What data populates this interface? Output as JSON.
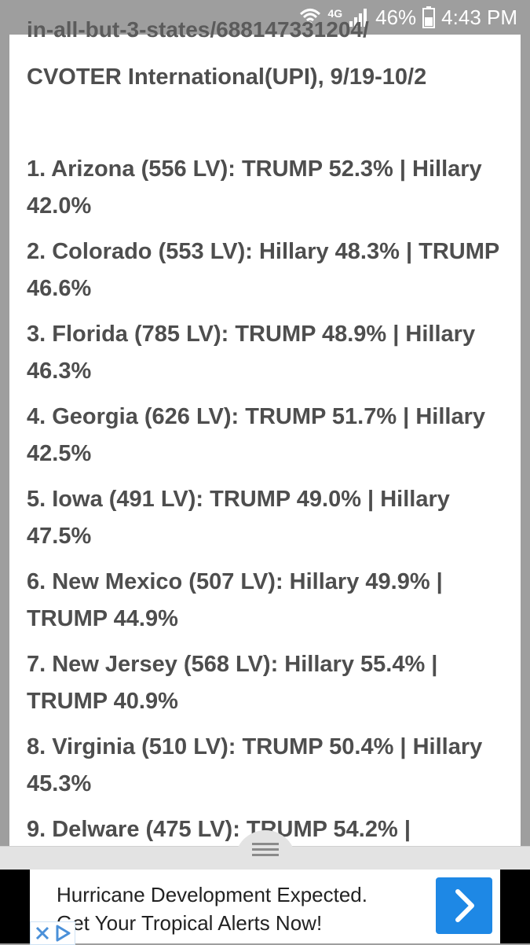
{
  "status_bar": {
    "network": "4G",
    "battery_percent": "46%",
    "time": "4:43 PM"
  },
  "article": {
    "url_fragment": "in-all-but-3-states/688147331204/",
    "source_line": "CVOTER International(UPI), 9/19-10/2",
    "polls": [
      {
        "text": "1. Arizona (556 LV): TRUMP 52.3% | Hillary 42.0%"
      },
      {
        "text": "2. Colorado (553 LV): Hillary 48.3% | TRUMP 46.6%"
      },
      {
        "text": "3. Florida (785 LV): TRUMP 48.9% | Hillary 46.3%"
      },
      {
        "text": "4. Georgia (626 LV): TRUMP 51.7% | Hillary 42.5%"
      },
      {
        "text": "5. Iowa (491 LV): TRUMP 49.0% | Hillary 47.5%"
      },
      {
        "text": "6. New Mexico (507 LV): Hillary 49.9% | TRUMP 44.9%"
      },
      {
        "text": "7. New Jersey (568 LV): Hillary 55.4% | TRUMP 40.9%"
      },
      {
        "text": "8. Virginia (510 LV): TRUMP 50.4% | Hillary 45.3%"
      },
      {
        "text": "9. Delware (475 LV): TRUMP 54.2% |"
      }
    ]
  },
  "ad": {
    "line1": "Hurricane Development Expected.",
    "line2": "Get Your Tropical Alerts Now!",
    "arrow_icon": "chevron-right-icon",
    "accent_color": "#1e88e5"
  }
}
